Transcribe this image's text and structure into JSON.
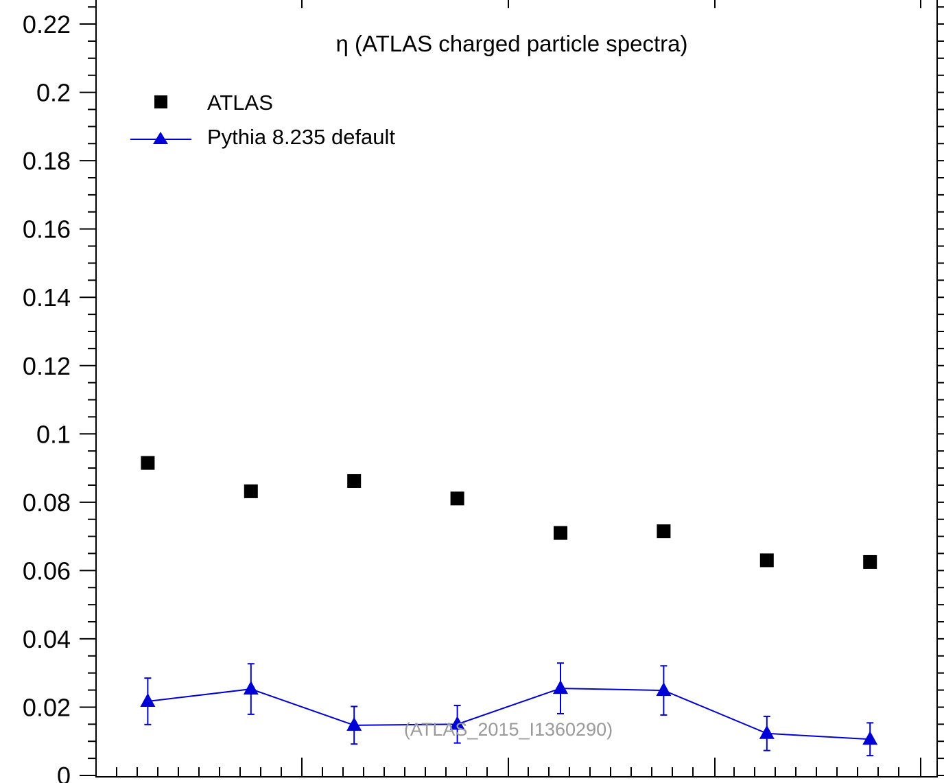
{
  "chart_data": {
    "type": "scatter",
    "title": "η (ATLAS charged particle spectra)",
    "xlabel": "",
    "ylabel": "",
    "ylim": [
      0,
      0.22
    ],
    "y_ticks": [
      "0",
      "0.02",
      "0.04",
      "0.06",
      "0.08",
      "0.1",
      "0.12",
      "0.14",
      "0.16",
      "0.18",
      "0.2",
      "0.22"
    ],
    "y_tick_values": [
      0,
      0.02,
      0.04,
      0.06,
      0.08,
      0.1,
      0.12,
      0.14,
      0.16,
      0.18,
      0.2,
      0.22
    ],
    "x": [
      1,
      2,
      3,
      4,
      5,
      6,
      7,
      8
    ],
    "xlim": [
      0,
      8.5
    ],
    "grid": false,
    "legend_position": "top-left",
    "series": [
      {
        "name": "ATLAS",
        "marker": "square",
        "color": "#000000",
        "values": [
          0.0915,
          0.0832,
          0.0862,
          0.0811,
          0.071,
          0.0715,
          0.063,
          0.0625
        ]
      },
      {
        "name": "Pythia 8.235 default",
        "marker": "triangle",
        "line": true,
        "color": "#0000d6",
        "values": [
          0.0217,
          0.0253,
          0.0147,
          0.015,
          0.0255,
          0.0249,
          0.0123,
          0.0106
        ],
        "errors": [
          0.0068,
          0.0074,
          0.0055,
          0.0055,
          0.0074,
          0.0072,
          0.005,
          0.0048
        ]
      }
    ],
    "annotation": "(ATLAS_2015_I1360290)"
  }
}
